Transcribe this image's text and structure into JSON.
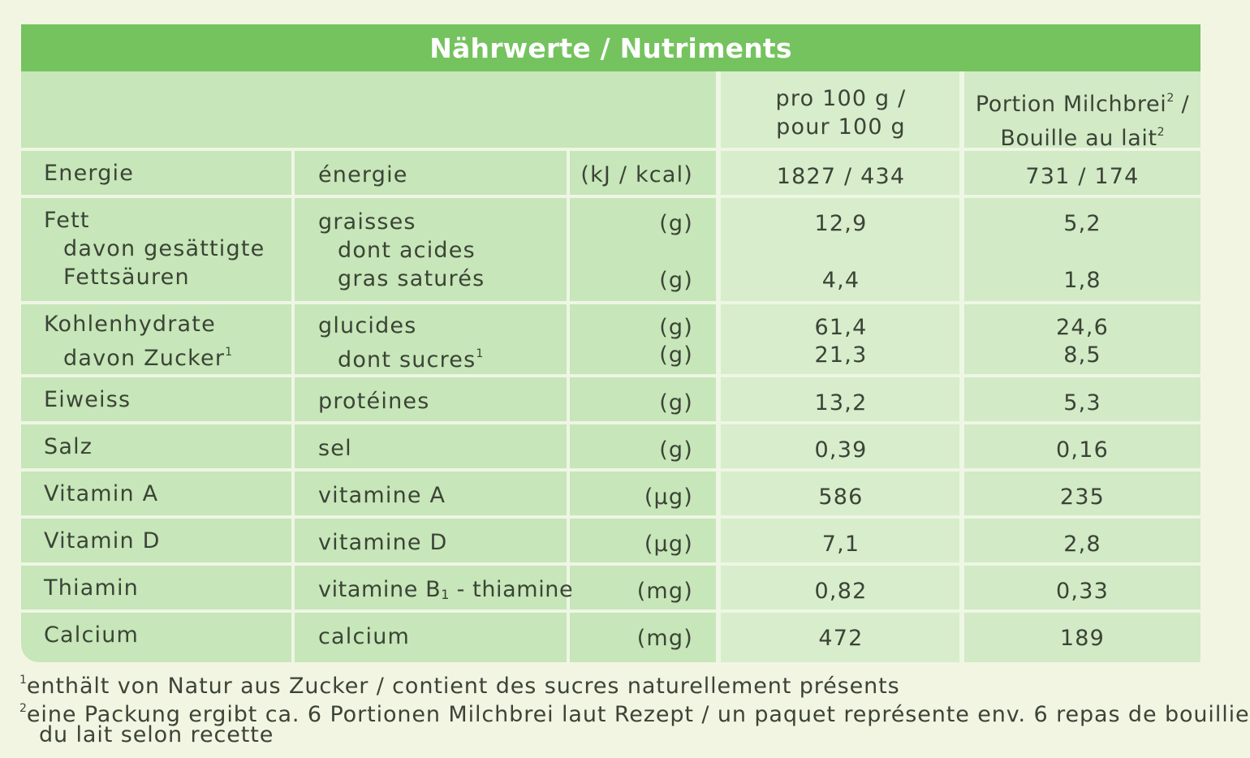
{
  "title": "Nährwerte / Nutriments",
  "header": {
    "col_per100_line1": "pro 100 g /",
    "col_per100_line2": "pour 100 g",
    "col_portion_line1": "Portion Milchbrei",
    "col_portion_sup1": "2",
    "col_portion_slash": "/",
    "col_portion_line2": "Bouille au lait",
    "col_portion_sup2": "2"
  },
  "rows": [
    {
      "de": "Energie",
      "fr": "énergie",
      "unit": "(kJ / kcal)",
      "per100": "1827 / 434",
      "portion": "731 / 174"
    },
    {
      "de": "Fett",
      "de_sub1": "davon gesättigte",
      "de_sub2": "Fettsäuren",
      "fr": "graisses",
      "fr_sub1": "dont acides",
      "fr_sub2": "gras saturés",
      "unit": "(g)",
      "unit2": "(g)",
      "per100": "12,9",
      "per100_2": "4,4",
      "portion": "5,2",
      "portion_2": "1,8"
    },
    {
      "de": "Kohlenhydrate",
      "de_sub1": "davon Zucker",
      "de_sub1_sup": "1",
      "fr": "glucides",
      "fr_sub1": "dont sucres",
      "fr_sub1_sup": "1",
      "unit": "(g)",
      "unit2": "(g)",
      "per100": "61,4",
      "per100_2": "21,3",
      "portion": "24,6",
      "portion_2": "8,5"
    },
    {
      "de": "Eiweiss",
      "fr": "protéines",
      "unit": "(g)",
      "per100": "13,2",
      "portion": "5,3"
    },
    {
      "de": "Salz",
      "fr": "sel",
      "unit": "(g)",
      "per100": "0,39",
      "portion": "0,16"
    },
    {
      "de": "Vitamin A",
      "fr": "vitamine A",
      "unit": "(µg)",
      "per100": "586",
      "portion": "235"
    },
    {
      "de": "Vitamin D",
      "fr": "vitamine D",
      "unit": "(µg)",
      "per100": "7,1",
      "portion": "2,8"
    },
    {
      "de": "Thiamin",
      "fr_pre": "vitamine B",
      "fr_sub": "1",
      "fr_post": " - thiamine",
      "unit": "(mg)",
      "per100": "0,82",
      "portion": "0,33"
    },
    {
      "de": "Calcium",
      "fr": "calcium",
      "unit": "(mg)",
      "per100": "472",
      "portion": "189"
    }
  ],
  "footnotes": {
    "n1_mark": "1",
    "n1_text": "enthält von Natur aus Zucker / contient des sucres naturellement présents",
    "n2_mark": "2",
    "n2_text": "eine Packung ergibt ca. 6 Portionen Milchbrei laut Rezept / un paquet représente env. 6 repas de bouillie",
    "n2_text_cont": "du lait selon recette"
  },
  "colors": {
    "title_bar": "#74c35e",
    "table_bg": "#c7e6b9",
    "value_col_bg": "#d9eecf",
    "text": "#3b4436",
    "grid": "#eef6e4"
  }
}
